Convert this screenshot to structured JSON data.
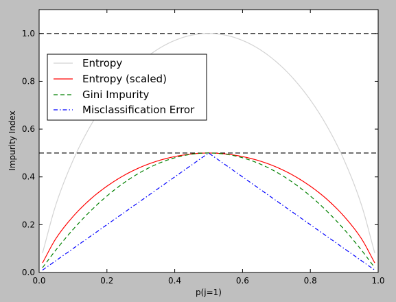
{
  "chart_data": {
    "type": "line",
    "xlabel": "p(j=1)",
    "ylabel": "Impurity Index",
    "xlim": [
      0.0,
      1.0
    ],
    "ylim": [
      0.0,
      1.1
    ],
    "x_ticks": [
      "0.0",
      "0.2",
      "0.4",
      "0.6",
      "0.8",
      "1.0"
    ],
    "y_ticks": [
      "0.0",
      "0.2",
      "0.4",
      "0.6",
      "0.8",
      "1.0"
    ],
    "grid": false,
    "legend_position": "upper-left",
    "hlines": [
      {
        "y": 1.0,
        "style": "dashed",
        "color": "#000000"
      },
      {
        "y": 0.5,
        "style": "dashed",
        "color": "#000000"
      }
    ],
    "series": [
      {
        "name": "Entropy",
        "color": "#d3d3d3",
        "style": "solid",
        "x": [
          0.01,
          0.05,
          0.1,
          0.15,
          0.2,
          0.25,
          0.3,
          0.35,
          0.4,
          0.45,
          0.5,
          0.55,
          0.6,
          0.65,
          0.7,
          0.75,
          0.8,
          0.85,
          0.9,
          0.95,
          0.99
        ],
        "values": [
          0.081,
          0.286,
          0.469,
          0.61,
          0.722,
          0.811,
          0.881,
          0.934,
          0.971,
          0.993,
          1.0,
          0.993,
          0.971,
          0.934,
          0.881,
          0.811,
          0.722,
          0.61,
          0.469,
          0.286,
          0.081
        ]
      },
      {
        "name": "Entropy (scaled)",
        "color": "#ff0000",
        "style": "solid",
        "x": [
          0.01,
          0.05,
          0.1,
          0.15,
          0.2,
          0.25,
          0.3,
          0.35,
          0.4,
          0.45,
          0.5,
          0.55,
          0.6,
          0.65,
          0.7,
          0.75,
          0.8,
          0.85,
          0.9,
          0.95,
          0.99
        ],
        "values": [
          0.04,
          0.143,
          0.234,
          0.305,
          0.361,
          0.406,
          0.441,
          0.467,
          0.485,
          0.496,
          0.5,
          0.496,
          0.485,
          0.467,
          0.441,
          0.406,
          0.361,
          0.305,
          0.234,
          0.143,
          0.04
        ]
      },
      {
        "name": "Gini Impurity",
        "color": "#008000",
        "style": "dashed",
        "x": [
          0.01,
          0.05,
          0.1,
          0.15,
          0.2,
          0.25,
          0.3,
          0.35,
          0.4,
          0.45,
          0.5,
          0.55,
          0.6,
          0.65,
          0.7,
          0.75,
          0.8,
          0.85,
          0.9,
          0.95,
          0.99
        ],
        "values": [
          0.02,
          0.095,
          0.18,
          0.255,
          0.32,
          0.375,
          0.42,
          0.455,
          0.48,
          0.495,
          0.5,
          0.495,
          0.48,
          0.455,
          0.42,
          0.375,
          0.32,
          0.255,
          0.18,
          0.095,
          0.02
        ]
      },
      {
        "name": "Misclassification Error",
        "color": "#0000ff",
        "style": "dashdot",
        "x": [
          0.01,
          0.5,
          0.99
        ],
        "values": [
          0.01,
          0.5,
          0.01
        ]
      }
    ]
  }
}
